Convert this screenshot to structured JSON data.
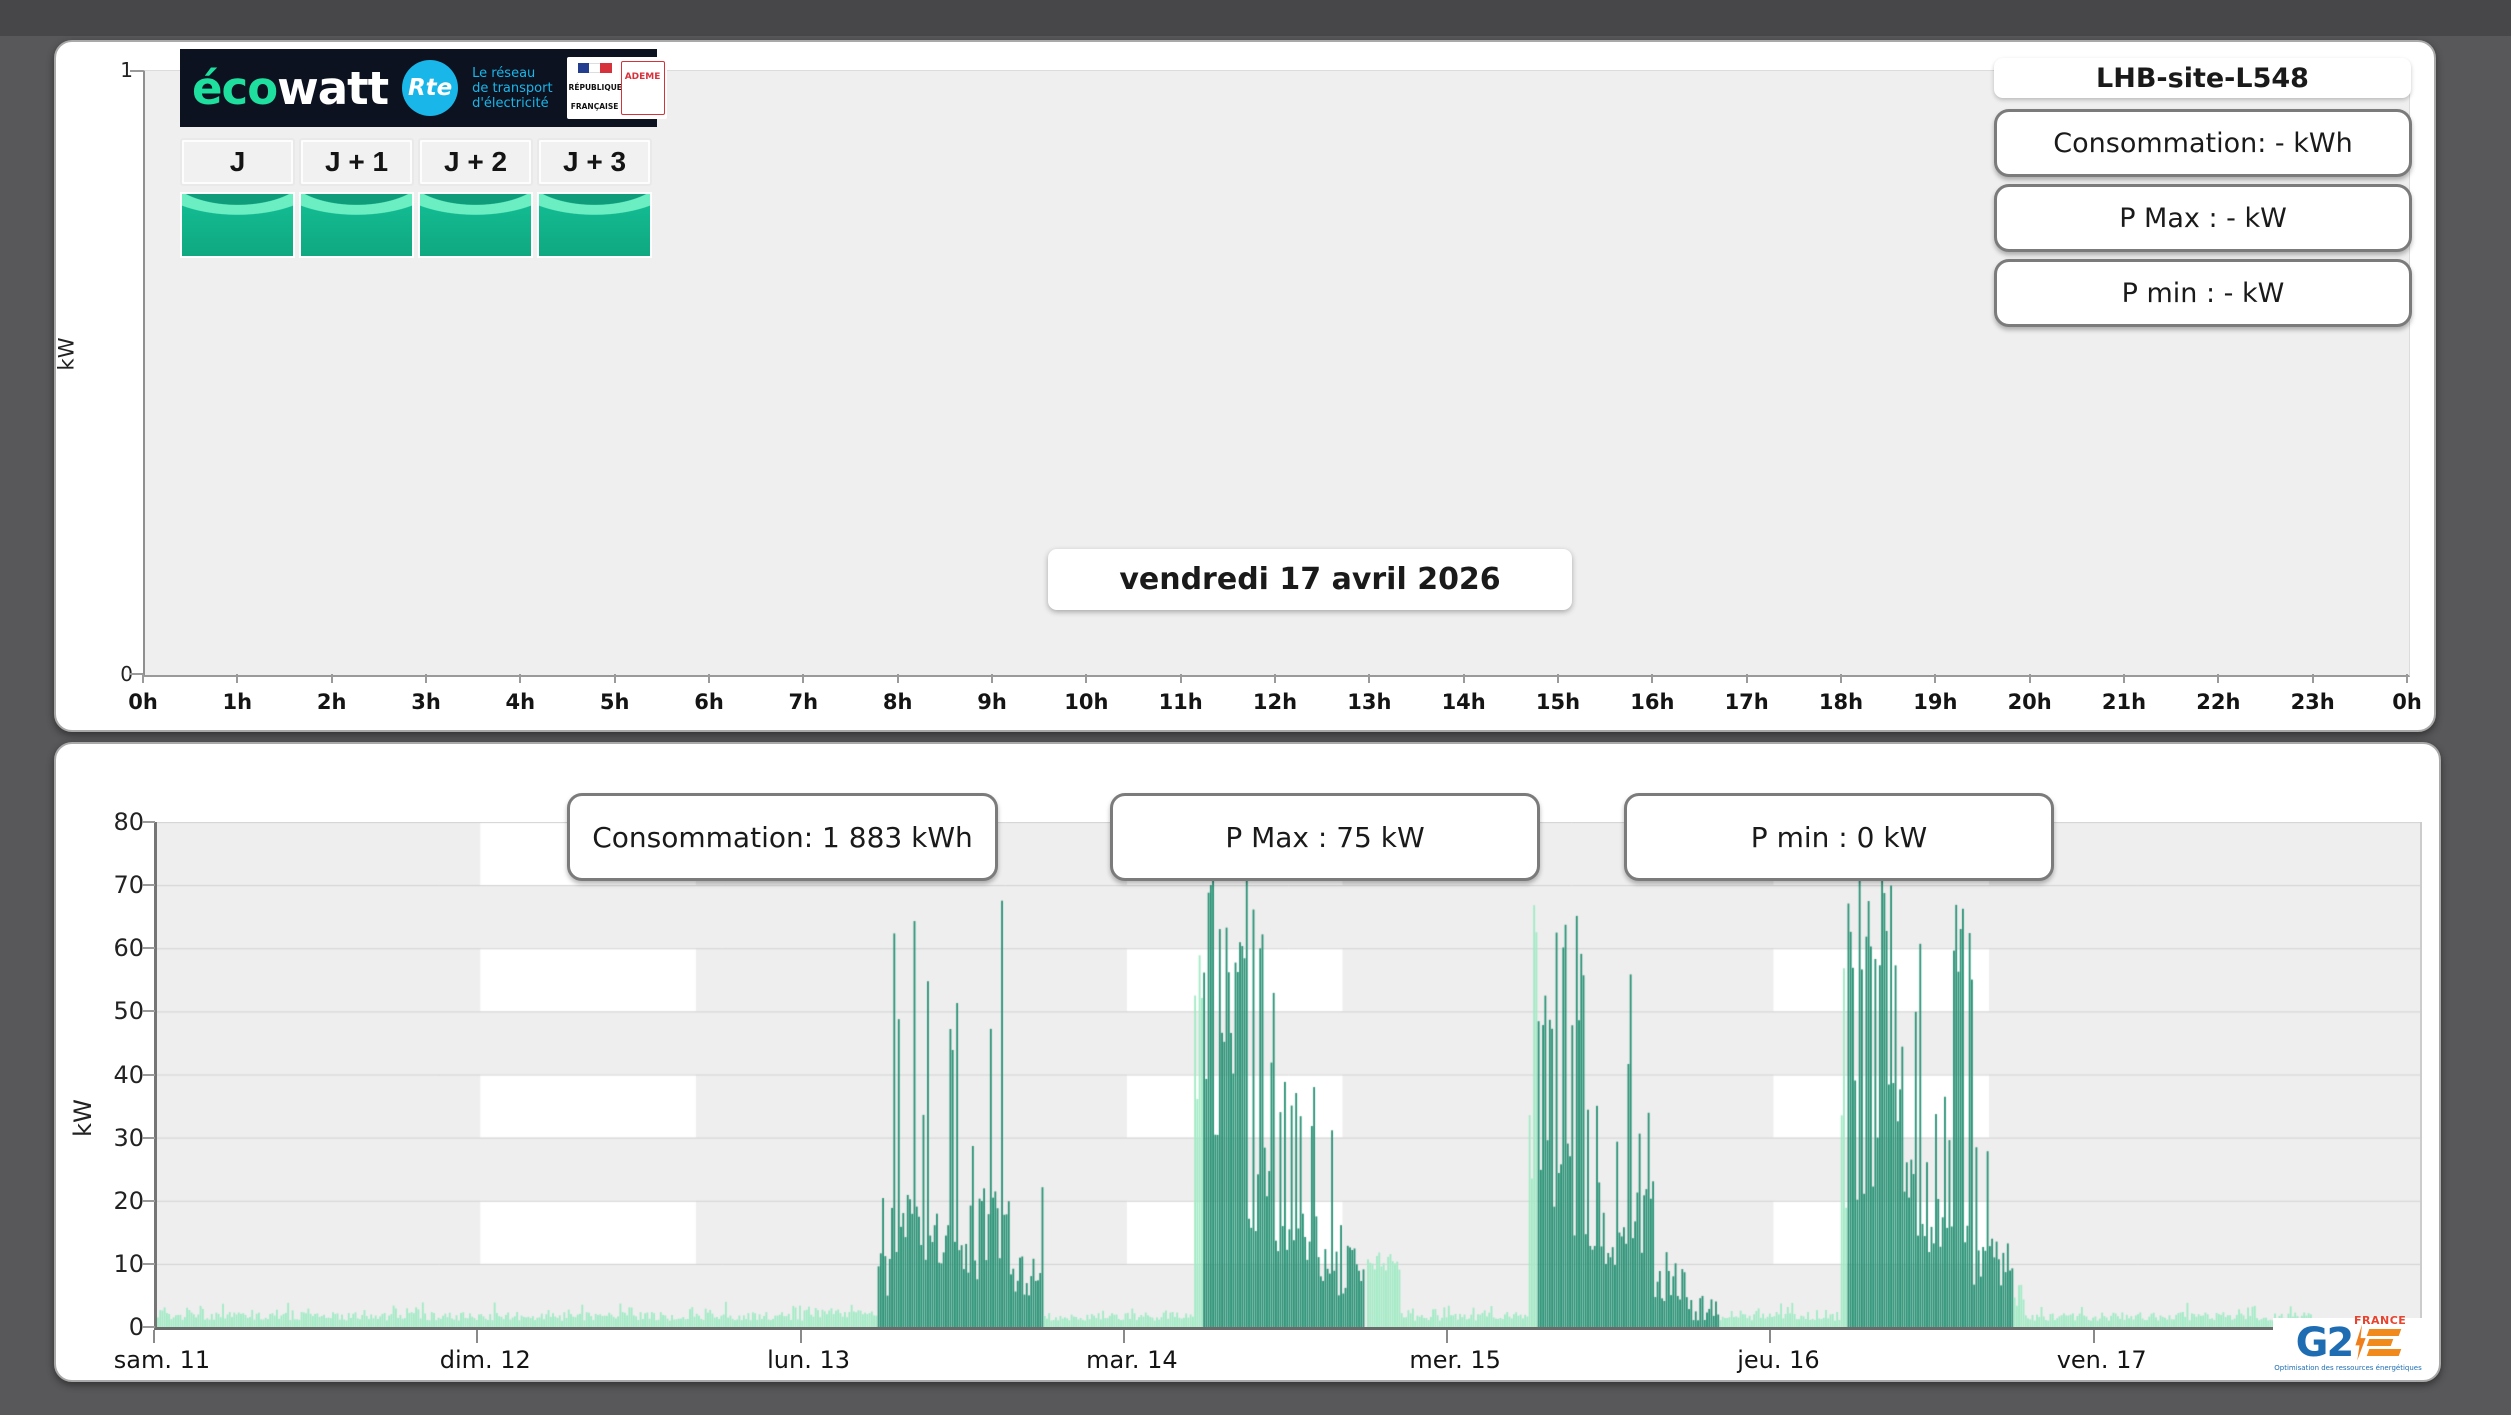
{
  "page": {
    "background": "#58585a"
  },
  "top_panel": {
    "logo": {
      "brand_eco": "éco",
      "brand_watt": "watt",
      "rte_badge": "Rte",
      "rte_lines": [
        "Le réseau",
        "de transport",
        "d'électricité"
      ],
      "rf_text": "RÉPUBLIQUE FRANÇAISE",
      "ademe_text": "ADEME"
    },
    "day_buttons": [
      {
        "label": "J"
      },
      {
        "label": "J + 1"
      },
      {
        "label": "J + 2"
      },
      {
        "label": "J + 3"
      }
    ],
    "site_title": "LHB-site-L548",
    "stats": [
      {
        "label": "Consommation: - kWh"
      },
      {
        "label": "P Max : - kW"
      },
      {
        "label": "P min : - kW"
      }
    ],
    "date_label": "vendredi 17 avril 2026",
    "y_unit": "kW",
    "y_ticks": [
      "1",
      "0"
    ],
    "x_labels": [
      "0h",
      "1h",
      "2h",
      "3h",
      "4h",
      "5h",
      "6h",
      "7h",
      "8h",
      "9h",
      "10h",
      "11h",
      "12h",
      "13h",
      "14h",
      "15h",
      "16h",
      "17h",
      "18h",
      "19h",
      "20h",
      "21h",
      "22h",
      "23h",
      "0h"
    ]
  },
  "bottom_panel": {
    "stats": [
      {
        "label": "Consommation: 1 883 kWh"
      },
      {
        "label": "P Max : 75 kW"
      },
      {
        "label": "P min : 0 kW"
      }
    ],
    "y_unit": "kW",
    "y_ticks": [
      "80",
      "70",
      "60",
      "50",
      "40",
      "30",
      "20",
      "10",
      "0"
    ],
    "x_labels": [
      "sam. 11",
      "dim. 12",
      "lun. 13",
      "mar. 14",
      "mer. 15",
      "jeu. 16",
      "ven. 17"
    ],
    "brand": {
      "g2": "G2",
      "e_text": "E",
      "france": "FRANCE",
      "tagline": "Optimisation des ressources énergétiques"
    }
  },
  "chart_data": [
    {
      "id": "forecast_day",
      "type": "bar",
      "title": "vendredi 17 avril 2026",
      "ylabel": "kW",
      "ylim": [
        0,
        1
      ],
      "x_tick_labels": [
        "0h",
        "1h",
        "2h",
        "3h",
        "4h",
        "5h",
        "6h",
        "7h",
        "8h",
        "9h",
        "10h",
        "11h",
        "12h",
        "13h",
        "14h",
        "15h",
        "16h",
        "17h",
        "18h",
        "19h",
        "20h",
        "21h",
        "22h",
        "23h",
        "0h"
      ],
      "series": [],
      "stats": {
        "consumption_kwh": "-",
        "p_max_kw": "-",
        "p_min_kw": "-"
      }
    },
    {
      "id": "history_week",
      "type": "bar",
      "ylabel": "kW",
      "ylim": [
        0,
        80
      ],
      "x_tick_labels": [
        "sam. 11",
        "dim. 12",
        "lun. 13",
        "mar. 14",
        "mer. 15",
        "jeu. 16",
        "ven. 17"
      ],
      "x_span_days": 7,
      "bar_interval_minutes": 10,
      "stats": {
        "consumption_kwh": "1 883",
        "p_max_kw": 75,
        "p_min_kw": 0
      },
      "colors": {
        "dark": "#2a9376",
        "light": "#a3ebc6"
      },
      "background": {
        "plot_bg": "#eeeeee",
        "band_fill": "#ffffff",
        "banded_day_columns": [
          1,
          3,
          5
        ],
        "band_day_fraction": 0.667,
        "band_rows_kw": [
          [
            70,
            80
          ],
          [
            50,
            60
          ],
          [
            30,
            40
          ],
          [
            10,
            20
          ]
        ],
        "gridline_step_kw": 10
      },
      "segments": [
        {
          "day": 0,
          "h0": 0,
          "h1": 24,
          "series": "light",
          "base": [
            1,
            2.4
          ],
          "spike": [
            2.6,
            4,
            0.12
          ]
        },
        {
          "day": 1,
          "h0": 0,
          "h1": 24,
          "series": "light",
          "base": [
            1,
            2.4
          ],
          "spike": [
            2.6,
            4,
            0.12
          ]
        },
        {
          "day": 2,
          "h0": 0,
          "h1": 5.5,
          "series": "light",
          "base": [
            1.5,
            3
          ],
          "spike": [
            3,
            4.5,
            0.2
          ]
        },
        {
          "day": 2,
          "h0": 5.5,
          "h1": 6.3,
          "series": "dark",
          "base": [
            4,
            12
          ],
          "spike": [
            13,
            22,
            0.3
          ]
        },
        {
          "day": 2,
          "h0": 6.3,
          "h1": 8.6,
          "series": "dark",
          "base": [
            10,
            22
          ],
          "spike": [
            45,
            70,
            0.42
          ]
        },
        {
          "day": 2,
          "h0": 8.6,
          "h1": 10.3,
          "series": "dark",
          "base": [
            9,
            18
          ],
          "spike": [
            30,
            66,
            0.25
          ]
        },
        {
          "day": 2,
          "h0": 10.3,
          "h1": 11.8,
          "series": "dark",
          "base": [
            10,
            20
          ],
          "spike": [
            35,
            63,
            0.38
          ]
        },
        {
          "day": 2,
          "h0": 11.8,
          "h1": 13.0,
          "series": "dark",
          "base": [
            6,
            14
          ],
          "spike": [
            15,
            30,
            0.2
          ]
        },
        {
          "day": 2,
          "h0": 13.0,
          "h1": 15.3,
          "series": "dark",
          "base": [
            10,
            22
          ],
          "spike": [
            40,
            72,
            0.38
          ]
        },
        {
          "day": 2,
          "h0": 15.3,
          "h1": 17.7,
          "series": "dark",
          "base": [
            5,
            13
          ],
          "spike": [
            16,
            38,
            0.18
          ]
        },
        {
          "day": 2,
          "h0": 17.7,
          "h1": 24,
          "series": "light",
          "base": [
            1,
            2.2
          ],
          "spike": [
            2.4,
            3.5,
            0.1
          ]
        },
        {
          "day": 3,
          "h0": 0,
          "h1": 5.0,
          "series": "light",
          "base": [
            1,
            2.4
          ],
          "spike": [
            2.6,
            4,
            0.12
          ]
        },
        {
          "day": 3,
          "h0": 5.0,
          "h1": 5.6,
          "series": "light",
          "base": [
            30,
            60
          ],
          "spike": [
            66,
            75,
            0.5
          ]
        },
        {
          "day": 3,
          "h0": 5.6,
          "h1": 9.0,
          "series": "dark",
          "base": [
            25,
            48
          ],
          "spike": [
            56,
            75,
            0.5
          ]
        },
        {
          "day": 3,
          "h0": 9.0,
          "h1": 11.0,
          "series": "dark",
          "base": [
            15,
            32
          ],
          "spike": [
            40,
            68,
            0.38
          ]
        },
        {
          "day": 3,
          "h0": 11.0,
          "h1": 12.2,
          "series": "dark",
          "base": [
            8,
            16
          ],
          "spike": [
            20,
            40,
            0.22
          ]
        },
        {
          "day": 3,
          "h0": 12.2,
          "h1": 14.2,
          "series": "dark",
          "base": [
            10,
            20
          ],
          "spike": [
            30,
            53,
            0.3
          ]
        },
        {
          "day": 3,
          "h0": 14.2,
          "h1": 17.6,
          "series": "dark",
          "base": [
            5,
            13
          ],
          "spike": [
            15,
            32,
            0.18
          ]
        },
        {
          "day": 3,
          "h0": 17.7,
          "h1": 20.3,
          "series": "light",
          "base": [
            8.5,
            11
          ],
          "spike": [
            11,
            12,
            0.3
          ]
        },
        {
          "day": 3,
          "h0": 20.3,
          "h1": 24,
          "series": "light",
          "base": [
            1,
            2.2
          ],
          "spike": [
            2.4,
            3.5,
            0.1
          ]
        },
        {
          "day": 4,
          "h0": 0,
          "h1": 5.7,
          "series": "light",
          "base": [
            1,
            2.4
          ],
          "spike": [
            2.6,
            4,
            0.12
          ]
        },
        {
          "day": 4,
          "h0": 5.7,
          "h1": 6.5,
          "series": "light",
          "base": [
            18,
            45
          ],
          "spike": [
            60,
            74,
            0.45
          ]
        },
        {
          "day": 4,
          "h0": 6.5,
          "h1": 9.8,
          "series": "dark",
          "base": [
            14,
            30
          ],
          "spike": [
            45,
            66,
            0.42
          ]
        },
        {
          "day": 4,
          "h0": 9.8,
          "h1": 11.4,
          "series": "dark",
          "base": [
            12,
            24
          ],
          "spike": [
            30,
            58,
            0.32
          ]
        },
        {
          "day": 4,
          "h0": 11.4,
          "h1": 12.4,
          "series": "dark",
          "base": [
            6,
            14
          ],
          "spike": [
            18,
            35,
            0.2
          ]
        },
        {
          "day": 4,
          "h0": 12.4,
          "h1": 15.0,
          "series": "dark",
          "base": [
            10,
            22
          ],
          "spike": [
            30,
            57,
            0.32
          ]
        },
        {
          "day": 4,
          "h0": 15.0,
          "h1": 17.5,
          "series": "dark",
          "base": [
            4,
            12
          ],
          "spike": [
            14,
            28,
            0.16
          ]
        },
        {
          "day": 4,
          "h0": 17.5,
          "h1": 20.0,
          "series": "dark",
          "base": [
            1,
            3
          ],
          "spike": [
            3.5,
            5,
            0.2
          ]
        },
        {
          "day": 4,
          "h0": 20.0,
          "h1": 24,
          "series": "light",
          "base": [
            1,
            2.2
          ],
          "spike": [
            2.4,
            3.5,
            0.1
          ]
        },
        {
          "day": 5,
          "h0": 0,
          "h1": 5.0,
          "series": "light",
          "base": [
            1,
            2.4
          ],
          "spike": [
            2.6,
            4,
            0.12
          ]
        },
        {
          "day": 5,
          "h0": 5.0,
          "h1": 5.5,
          "series": "light",
          "base": [
            18,
            40
          ],
          "spike": [
            50,
            72,
            0.4
          ]
        },
        {
          "day": 5,
          "h0": 5.5,
          "h1": 9.3,
          "series": "dark",
          "base": [
            20,
            40
          ],
          "spike": [
            55,
            73,
            0.48
          ]
        },
        {
          "day": 5,
          "h0": 9.3,
          "h1": 11.3,
          "series": "dark",
          "base": [
            14,
            28
          ],
          "spike": [
            35,
            62,
            0.35
          ]
        },
        {
          "day": 5,
          "h0": 11.3,
          "h1": 12.5,
          "series": "dark",
          "base": [
            8,
            16
          ],
          "spike": [
            20,
            35,
            0.2
          ]
        },
        {
          "day": 5,
          "h0": 12.5,
          "h1": 13.1,
          "series": "dark",
          "base": [
            10,
            20
          ],
          "spike": [
            25,
            45,
            0.3
          ]
        },
        {
          "day": 5,
          "h0": 13.1,
          "h1": 14.7,
          "series": "dark",
          "base": [
            10,
            22
          ],
          "spike": [
            55,
            70,
            0.42
          ]
        },
        {
          "day": 5,
          "h0": 14.7,
          "h1": 17.7,
          "series": "dark",
          "base": [
            6,
            14
          ],
          "spike": [
            16,
            35,
            0.18
          ]
        },
        {
          "day": 5,
          "h0": 17.7,
          "h1": 18.6,
          "series": "light",
          "base": [
            3,
            6
          ],
          "spike": [
            6,
            8,
            0.25
          ]
        },
        {
          "day": 5,
          "h0": 18.6,
          "h1": 24,
          "series": "light",
          "base": [
            1,
            2.2
          ],
          "spike": [
            2.4,
            3.5,
            0.1
          ]
        },
        {
          "day": 6,
          "h0": 0,
          "h1": 16,
          "series": "light",
          "base": [
            1,
            2.4
          ],
          "spike": [
            2.6,
            4,
            0.12
          ]
        }
      ]
    }
  ]
}
